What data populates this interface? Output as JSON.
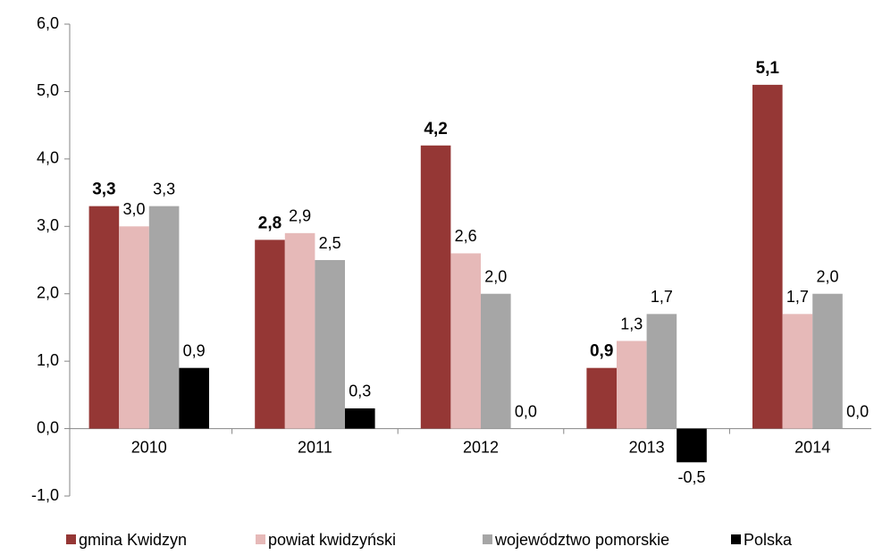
{
  "chart_data": {
    "type": "bar",
    "categories": [
      "2010",
      "2011",
      "2012",
      "2013",
      "2014"
    ],
    "series": [
      {
        "name": "gmina Kwidzyn",
        "color": "#953735",
        "values": [
          3.3,
          2.8,
          4.2,
          0.9,
          5.1
        ],
        "value_labels": [
          "3,3",
          "2,8",
          "4,2",
          "0,9",
          "5,1"
        ]
      },
      {
        "name": "powiat kwidzyński",
        "color": "#e6b9b8",
        "values": [
          3.0,
          2.9,
          2.6,
          1.3,
          1.7
        ],
        "value_labels": [
          "3,0",
          "2,9",
          "2,6",
          "1,3",
          "1,7"
        ]
      },
      {
        "name": "województwo pomorskie",
        "color": "#a6a6a6",
        "values": [
          3.3,
          2.5,
          2.0,
          1.7,
          2.0
        ],
        "value_labels": [
          "3,3",
          "2,5",
          "2,0",
          "1,7",
          "2,0"
        ]
      },
      {
        "name": "Polska",
        "color": "#000000",
        "values": [
          0.9,
          0.3,
          0.0,
          -0.5,
          0.0
        ],
        "value_labels": [
          "0,9",
          "0,3",
          "0,0",
          "-0,5",
          "0,0"
        ]
      }
    ],
    "ylim": [
      -1,
      6
    ],
    "yticks": [
      {
        "value": -1,
        "label": "-1,0"
      },
      {
        "value": 0,
        "label": "0,0"
      },
      {
        "value": 1,
        "label": "1,0"
      },
      {
        "value": 2,
        "label": "2,0"
      },
      {
        "value": 3,
        "label": "3,0"
      },
      {
        "value": 4,
        "label": "4,0"
      },
      {
        "value": 5,
        "label": "5,0"
      },
      {
        "value": 6,
        "label": "6,0"
      }
    ],
    "grid": false,
    "legend": "bottom"
  }
}
